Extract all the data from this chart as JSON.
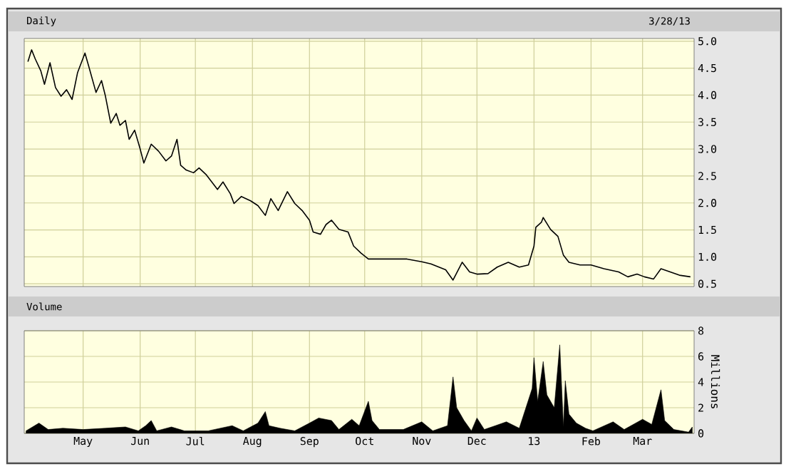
{
  "chart_data": [
    {
      "type": "line",
      "title": "Daily",
      "subtitle": "3/28/13",
      "color": "#000000",
      "grid": true,
      "tick_labels": "y",
      "xlim": [
        "2012-03-30",
        "2013-03-29"
      ],
      "xticks": [
        {
          "value": "2012-05-01",
          "label": null
        },
        {
          "value": "2012-06-01",
          "label": null
        },
        {
          "value": "2012-07-01",
          "label": null
        },
        {
          "value": "2012-08-01",
          "label": null
        },
        {
          "value": "2012-09-01",
          "label": null
        },
        {
          "value": "2012-10-01",
          "label": null
        },
        {
          "value": "2012-11-01",
          "label": null
        },
        {
          "value": "2012-12-01",
          "label": null
        },
        {
          "value": "2013-01-01",
          "label": null
        },
        {
          "value": "2013-02-01",
          "label": null
        },
        {
          "value": "2013-03-01",
          "label": null
        }
      ],
      "ylim": [
        0.45,
        5.05
      ],
      "yticks": [
        0.5,
        {
          "value": 1,
          "label": "1.0"
        },
        1.5,
        {
          "value": 2,
          "label": "2.0"
        },
        2.5,
        {
          "value": 3,
          "label": "3.0"
        },
        3.5,
        {
          "value": 4,
          "label": "4.0"
        },
        4.5,
        {
          "value": 5,
          "label": "5.0"
        }
      ],
      "x": [
        "2012-04-01",
        "2012-04-03",
        "2012-04-05",
        "2012-04-08",
        "2012-04-10",
        "2012-04-13",
        "2012-04-16",
        "2012-04-19",
        "2012-04-22",
        "2012-04-25",
        "2012-04-28",
        "2012-05-02",
        "2012-05-04",
        "2012-05-08",
        "2012-05-11",
        "2012-05-13",
        "2012-05-16",
        "2012-05-19",
        "2012-05-21",
        "2012-05-24",
        "2012-05-26",
        "2012-05-29",
        "2012-06-01",
        "2012-06-03",
        "2012-06-07",
        "2012-06-11",
        "2012-06-15",
        "2012-06-18",
        "2012-06-21",
        "2012-06-23",
        "2012-06-26",
        "2012-06-30",
        "2012-07-03",
        "2012-07-07",
        "2012-07-13",
        "2012-07-16",
        "2012-07-20",
        "2012-07-22",
        "2012-07-26",
        "2012-07-31",
        "2012-08-04",
        "2012-08-08",
        "2012-08-11",
        "2012-08-15",
        "2012-08-20",
        "2012-08-24",
        "2012-08-28",
        "2012-09-01",
        "2012-09-03",
        "2012-09-07",
        "2012-09-10",
        "2012-09-13",
        "2012-09-17",
        "2012-09-22",
        "2012-09-25",
        "2012-09-29",
        "2012-10-03",
        "2012-10-10",
        "2012-10-19",
        "2012-10-24",
        "2012-11-01",
        "2012-11-06",
        "2012-11-14",
        "2012-11-18",
        "2012-11-23",
        "2012-11-27",
        "2012-12-01",
        "2012-12-07",
        "2012-12-12",
        "2012-12-18",
        "2012-12-24",
        "2012-12-29",
        "2013-01-01",
        "2013-01-02",
        "2013-01-05",
        "2013-01-06",
        "2013-01-10",
        "2013-01-14",
        "2013-01-17",
        "2013-01-20",
        "2013-01-26",
        "2013-02-01",
        "2013-02-08",
        "2013-02-16",
        "2013-02-21",
        "2013-02-26",
        "2013-03-02",
        "2013-03-07",
        "2013-03-11",
        "2013-03-16",
        "2013-03-21",
        "2013-03-27"
      ],
      "values": [
        4.62,
        4.84,
        4.67,
        4.45,
        4.2,
        4.6,
        4.14,
        3.98,
        4.1,
        3.92,
        4.42,
        4.78,
        4.54,
        4.05,
        4.27,
        4.0,
        3.48,
        3.66,
        3.44,
        3.53,
        3.18,
        3.35,
        3.0,
        2.74,
        3.09,
        2.96,
        2.78,
        2.87,
        3.18,
        2.7,
        2.61,
        2.56,
        2.65,
        2.52,
        2.25,
        2.39,
        2.17,
        1.99,
        2.12,
        2.04,
        1.95,
        1.77,
        2.08,
        1.86,
        2.21,
        1.99,
        1.86,
        1.68,
        1.46,
        1.42,
        1.6,
        1.68,
        1.51,
        1.46,
        1.2,
        1.07,
        0.96,
        0.96,
        0.96,
        0.96,
        0.91,
        0.87,
        0.76,
        0.57,
        0.9,
        0.72,
        0.68,
        0.69,
        0.81,
        0.9,
        0.81,
        0.85,
        1.2,
        1.55,
        1.64,
        1.73,
        1.51,
        1.38,
        1.03,
        0.9,
        0.85,
        0.85,
        0.78,
        0.72,
        0.63,
        0.68,
        0.63,
        0.59,
        0.78,
        0.72,
        0.66,
        0.63
      ]
    },
    {
      "type": "area",
      "title": "Volume",
      "ylabel": "Millions",
      "color": "#000000",
      "grid": true,
      "xlim": [
        "2012-03-30",
        "2013-03-29"
      ],
      "xticks": [
        {
          "value": "2012-05-01",
          "label": "May"
        },
        {
          "value": "2012-06-01",
          "label": "Jun"
        },
        {
          "value": "2012-07-01",
          "label": "Jul"
        },
        {
          "value": "2012-08-01",
          "label": "Aug"
        },
        {
          "value": "2012-09-01",
          "label": "Sep"
        },
        {
          "value": "2012-10-01",
          "label": "Oct"
        },
        {
          "value": "2012-11-01",
          "label": "Nov"
        },
        {
          "value": "2012-12-01",
          "label": "Dec"
        },
        {
          "value": "2013-01-01",
          "label": "13"
        },
        {
          "value": "2013-02-01",
          "label": "Feb"
        },
        {
          "value": "2013-03-01",
          "label": "Mar"
        }
      ],
      "ylim": [
        0,
        8
      ],
      "yticks": [
        0,
        2,
        4,
        6,
        8
      ],
      "x": [
        "2012-03-31",
        "2012-04-07",
        "2012-04-12",
        "2012-04-20",
        "2012-05-01",
        "2012-05-13",
        "2012-05-24",
        "2012-05-31",
        "2012-06-04",
        "2012-06-07",
        "2012-06-10",
        "2012-06-18",
        "2012-06-25",
        "2012-07-08",
        "2012-07-21",
        "2012-07-27",
        "2012-08-04",
        "2012-08-08",
        "2012-08-10",
        "2012-08-16",
        "2012-08-24",
        "2012-09-01",
        "2012-09-06",
        "2012-09-13",
        "2012-09-17",
        "2012-09-24",
        "2012-09-28",
        "2012-10-03",
        "2012-10-05",
        "2012-10-09",
        "2012-10-22",
        "2012-11-01",
        "2012-11-07",
        "2012-11-15",
        "2012-11-18",
        "2012-11-20",
        "2012-11-24",
        "2012-11-28",
        "2012-12-01",
        "2012-12-05",
        "2012-12-11",
        "2012-12-17",
        "2012-12-24",
        "2012-12-31",
        "2013-01-01",
        "2013-01-03",
        "2013-01-06",
        "2013-01-08",
        "2013-01-12",
        "2013-01-15",
        "2013-01-17",
        "2013-01-18",
        "2013-01-20",
        "2013-01-24",
        "2013-01-29",
        "2013-02-02",
        "2013-02-13",
        "2013-02-19",
        "2013-03-01",
        "2013-03-06",
        "2013-03-11",
        "2013-03-13",
        "2013-03-18",
        "2013-03-26",
        "2013-03-28"
      ],
      "values": [
        0.2,
        0.8,
        0.3,
        0.4,
        0.3,
        0.4,
        0.5,
        0.2,
        0.6,
        1.0,
        0.2,
        0.5,
        0.2,
        0.2,
        0.6,
        0.2,
        0.8,
        1.7,
        0.6,
        0.4,
        0.2,
        0.8,
        1.2,
        1.0,
        0.3,
        1.1,
        0.6,
        2.5,
        1.0,
        0.3,
        0.3,
        0.9,
        0.2,
        0.6,
        4.4,
        2.0,
        1.0,
        0.2,
        1.2,
        0.3,
        0.6,
        0.9,
        0.4,
        3.5,
        5.9,
        2.5,
        5.6,
        3.0,
        2.0,
        6.9,
        0.5,
        4.1,
        1.5,
        0.8,
        0.4,
        0.2,
        0.9,
        0.3,
        1.1,
        0.7,
        3.4,
        1.0,
        0.3,
        0.1,
        0.5
      ]
    }
  ]
}
